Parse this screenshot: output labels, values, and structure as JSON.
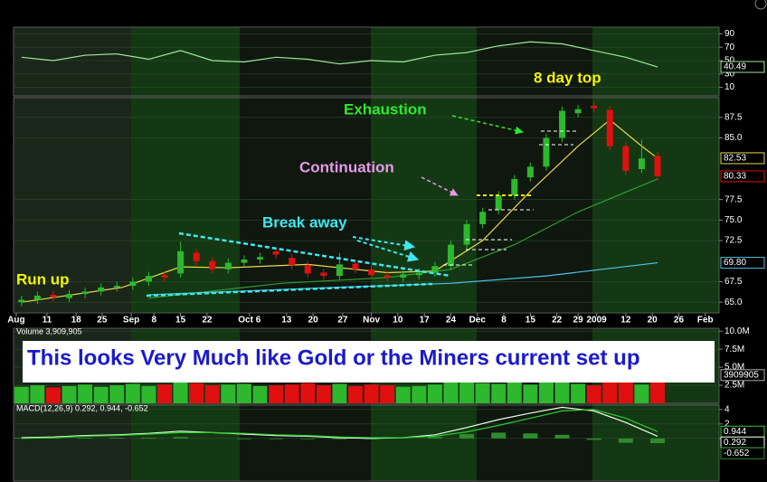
{
  "chart_data": [
    {
      "type": "line",
      "x": [
        1,
        7,
        13,
        19,
        25,
        31,
        37,
        43,
        49,
        55,
        61,
        67,
        73,
        79,
        85,
        91,
        97,
        103,
        109,
        115,
        121
      ],
      "series": [
        {
          "color": "#9be89b",
          "values": [
            55,
            50,
            58,
            60,
            52,
            65,
            50,
            48,
            55,
            52,
            45,
            50,
            48,
            58,
            62,
            72,
            78,
            75,
            65,
            55,
            40.49
          ]
        }
      ],
      "xlim": [
        -0.5,
        132.6
      ],
      "ylim": [
        0,
        100
      ],
      "yticks": [
        90,
        70,
        50,
        30,
        10
      ],
      "last_values": [
        {
          "value": 40.49,
          "color": "#9be89b"
        }
      ]
    },
    {
      "type": "candlestick",
      "x": [
        1,
        4,
        7,
        10,
        13,
        16,
        19,
        22,
        25,
        28,
        31,
        34,
        37,
        40,
        43,
        46,
        49,
        52,
        55,
        58,
        61,
        64,
        67,
        70,
        73,
        76,
        79,
        82,
        85,
        88,
        91,
        94,
        97,
        100,
        103,
        106,
        109,
        112,
        115,
        118,
        121
      ],
      "open": [
        65.0,
        65.3,
        65.9,
        65.5,
        66.0,
        66.3,
        66.8,
        67.0,
        67.5,
        68.3,
        68.5,
        71.0,
        70.0,
        69.0,
        69.8,
        70.2,
        71.2,
        70.4,
        69.5,
        68.6,
        68.2,
        69.7,
        69.0,
        68.3,
        68.0,
        68.3,
        68.6,
        69.4,
        72.0,
        74.5,
        76.2,
        78.0,
        80.2,
        81.5,
        85.0,
        88.0,
        88.9,
        88.4,
        84.0,
        81.2,
        82.8
      ],
      "high": [
        65.8,
        66.3,
        66.4,
        66.5,
        66.8,
        67.3,
        67.5,
        68.0,
        68.7,
        68.8,
        72.4,
        71.5,
        70.5,
        70.3,
        70.7,
        71.0,
        71.7,
        70.9,
        70.0,
        69.1,
        71.0,
        70.2,
        69.5,
        68.8,
        68.9,
        69.1,
        69.9,
        72.5,
        75.0,
        76.5,
        78.5,
        80.5,
        82.0,
        85.5,
        88.8,
        89.0,
        89.4,
        88.9,
        84.5,
        84.8,
        83.3
      ],
      "low": [
        64.5,
        64.8,
        65.1,
        65.0,
        65.5,
        65.8,
        66.3,
        66.5,
        67.0,
        67.5,
        68.0,
        69.5,
        68.5,
        68.5,
        69.3,
        69.7,
        70.3,
        69.0,
        68.0,
        67.7,
        67.7,
        68.5,
        67.8,
        67.5,
        67.5,
        67.8,
        68.1,
        68.9,
        71.5,
        74.0,
        75.7,
        77.5,
        79.7,
        81.0,
        84.5,
        87.5,
        88.1,
        83.5,
        80.5,
        80.7,
        79.8
      ],
      "close": [
        65.3,
        65.8,
        65.6,
        66.0,
        66.3,
        66.8,
        67.0,
        67.5,
        68.2,
        68.0,
        71.2,
        70.0,
        69.0,
        69.8,
        70.2,
        70.5,
        70.8,
        69.5,
        68.5,
        68.2,
        69.6,
        69.0,
        68.3,
        68.0,
        68.4,
        68.6,
        69.4,
        72.0,
        74.5,
        76.0,
        78.0,
        80.0,
        81.5,
        85.0,
        88.3,
        88.5,
        88.6,
        84.0,
        81.0,
        82.5,
        80.33
      ],
      "up_color": "#2db82d",
      "down_color": "#e01010",
      "series": [
        {
          "color": "#e8d84a",
          "x": [
            1,
            20,
            31,
            40,
            55,
            70,
            79,
            88,
            97,
            106,
            112,
            118,
            121
          ],
          "values": [
            65.0,
            66.8,
            69.3,
            69.2,
            69.6,
            68.6,
            68.8,
            72.5,
            78.5,
            84.0,
            87.2,
            84.0,
            82.53
          ]
        },
        {
          "color": "#2e9e2e",
          "x": [
            25,
            50,
            70,
            82,
            94,
            106,
            121
          ],
          "values": [
            65.5,
            67.3,
            68.0,
            69.0,
            72.0,
            76.0,
            80.0
          ]
        },
        {
          "color": "#4fc4e8",
          "x": [
            25,
            60,
            82,
            100,
            121
          ],
          "values": [
            65.9,
            66.8,
            67.3,
            68.2,
            69.8
          ]
        }
      ],
      "xlim": [
        -0.5,
        132.6
      ],
      "ylim": [
        63.7,
        89.9
      ],
      "yticks": [
        {
          "value": 65,
          "label": "65.0"
        },
        {
          "value": 67.5,
          "label": "67.5"
        },
        {
          "value": 72.5,
          "label": "72.5"
        },
        {
          "value": 75,
          "label": "75.0"
        },
        {
          "value": 77.5,
          "label": "77.5"
        },
        {
          "value": 85,
          "label": "85.0"
        },
        {
          "value": 87.5,
          "label": "87.5"
        }
      ],
      "xticks": [
        {
          "value": 0,
          "label": "Aug"
        },
        {
          "value": 5.8,
          "label": "11"
        },
        {
          "value": 11.3,
          "label": "18"
        },
        {
          "value": 16.2,
          "label": "25"
        },
        {
          "value": 21.7,
          "label": "Sep"
        },
        {
          "value": 26,
          "label": "8"
        },
        {
          "value": 31,
          "label": "15"
        },
        {
          "value": 36,
          "label": "22"
        },
        {
          "value": 44,
          "label": "Oct 6"
        },
        {
          "value": 51,
          "label": "13"
        },
        {
          "value": 56,
          "label": "20"
        },
        {
          "value": 61.6,
          "label": "27"
        },
        {
          "value": 67,
          "label": "Nov"
        },
        {
          "value": 72,
          "label": "10"
        },
        {
          "value": 77,
          "label": "17"
        },
        {
          "value": 82,
          "label": "24"
        },
        {
          "value": 87,
          "label": "Dec"
        },
        {
          "value": 92,
          "label": "8"
        },
        {
          "value": 97,
          "label": "15"
        },
        {
          "value": 102,
          "label": "22"
        },
        {
          "value": 106,
          "label": "29"
        },
        {
          "value": 109.5,
          "label": "2009"
        },
        {
          "value": 115,
          "label": "12"
        },
        {
          "value": 120,
          "label": "20"
        },
        {
          "value": 125,
          "label": "26"
        },
        {
          "value": 130,
          "label": "Feb"
        }
      ],
      "last_values": [
        {
          "value": 82.53,
          "color": "#e8d84a"
        },
        {
          "value": 80.33,
          "color": "#e01010"
        },
        {
          "value": 69.8,
          "label": "69.80",
          "color": "#4fc4e8"
        }
      ]
    },
    {
      "type": "bar",
      "title": "Volume 3,909,905",
      "x": [
        1,
        4,
        7,
        10,
        13,
        16,
        19,
        22,
        25,
        28,
        31,
        34,
        37,
        40,
        43,
        46,
        49,
        52,
        55,
        58,
        61,
        64,
        67,
        70,
        73,
        76,
        79,
        82,
        85,
        88,
        91,
        94,
        97,
        100,
        103,
        106,
        109,
        112,
        115,
        118,
        121
      ],
      "values": [
        2300000,
        2500000,
        2200000,
        2400000,
        2600000,
        2300000,
        2500000,
        2700000,
        2400000,
        2600000,
        3000000,
        2800000,
        2500000,
        2600000,
        2700000,
        2400000,
        2500000,
        2600000,
        2800000,
        2500000,
        2700000,
        2400000,
        2600000,
        2500000,
        2300000,
        2400000,
        2600000,
        2900000,
        3100000,
        2800000,
        2700000,
        2900000,
        2600000,
        3000000,
        3200000,
        2700000,
        2500000,
        3300000,
        3000000,
        2600000,
        3909905
      ],
      "xlim": [
        -0.5,
        132.6
      ],
      "ylim": [
        0,
        10400000
      ],
      "yticks": [
        {
          "value": 10000000,
          "label": "10.0M"
        },
        {
          "value": 7500000,
          "label": "7.5M"
        },
        {
          "value": 5000000,
          "label": "5.0M"
        },
        {
          "value": 2500000,
          "label": "2.5M"
        }
      ],
      "last_values": [
        {
          "value": 3909905,
          "color": "#aaaaaa"
        }
      ]
    },
    {
      "type": "line",
      "title": "MACD(12,26,9) 0.292, 0.944, -0.652",
      "x": [
        1,
        7,
        13,
        19,
        25,
        31,
        37,
        43,
        49,
        55,
        61,
        67,
        73,
        79,
        85,
        91,
        97,
        103,
        109,
        115,
        121
      ],
      "series": [
        {
          "color": "#2e8b2e",
          "style": "bar",
          "values": [
            0.1,
            0.1,
            0.1,
            0.1,
            0.1,
            0.2,
            0.0,
            -0.1,
            -0.1,
            -0.1,
            -0.1,
            -0.1,
            0.0,
            0.2,
            0.6,
            0.8,
            0.7,
            0.5,
            -0.2,
            -0.6,
            -0.652
          ]
        },
        {
          "color": "#e8ffe8",
          "values": [
            0.1,
            0.2,
            0.4,
            0.5,
            0.7,
            1.0,
            0.8,
            0.6,
            0.4,
            0.3,
            0.1,
            0.0,
            0.1,
            0.5,
            1.5,
            2.6,
            3.5,
            4.3,
            3.8,
            2.2,
            0.292
          ]
        },
        {
          "color": "#2ecc2e",
          "values": [
            0.0,
            0.1,
            0.3,
            0.4,
            0.6,
            0.8,
            0.8,
            0.7,
            0.5,
            0.4,
            0.2,
            0.1,
            0.1,
            0.3,
            0.9,
            1.8,
            2.8,
            3.8,
            4.0,
            2.8,
            0.944
          ]
        }
      ],
      "xlim": [
        -0.5,
        132.6
      ],
      "ylim": [
        -5.9,
        4.6
      ],
      "yticks": [
        4,
        2,
        0
      ],
      "last_values": [
        {
          "value": 0.944,
          "color": "#2ecc2e"
        },
        {
          "value": 0.292,
          "color": "#e8ffe8"
        },
        {
          "value": -0.652,
          "color": "#2e8b2e"
        }
      ]
    }
  ],
  "annotations": [
    "Run up",
    "Break away",
    "Continuation",
    "Exhaustion",
    "8 day top"
  ],
  "banner": "This looks Very Much like Gold or the Miners current set up"
}
